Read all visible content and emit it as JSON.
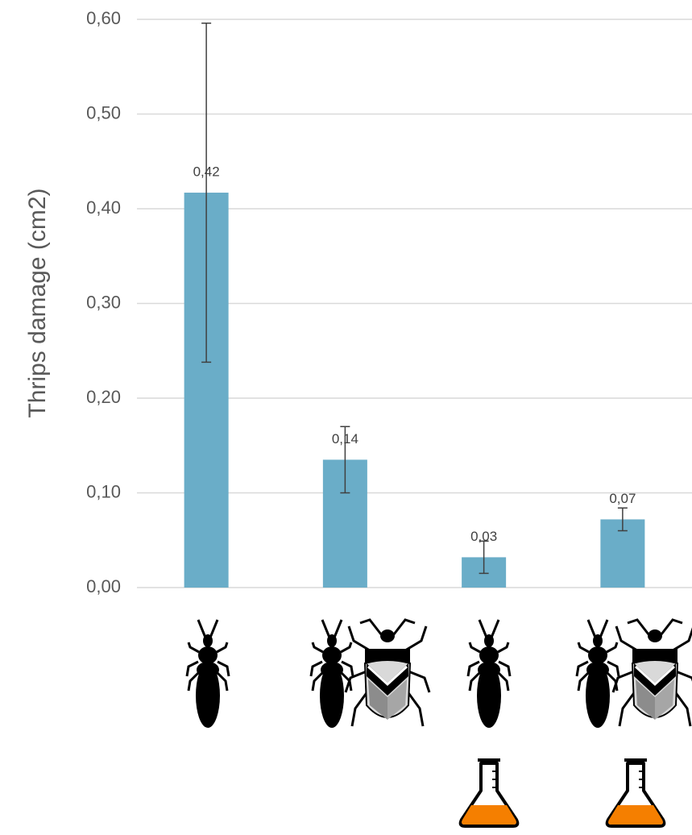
{
  "chart_data": {
    "type": "bar",
    "y_label": "Thrips damage (cm2)",
    "categories": [
      null,
      null,
      null,
      null
    ],
    "values": [
      0.417,
      0.135,
      0.032,
      0.072
    ],
    "value_labels": [
      "0,42",
      "0,14",
      "0,03",
      "0,07"
    ],
    "errors": [
      0.179,
      0.035,
      0.017,
      0.012
    ],
    "color": "#6aadc8",
    "ylim": [
      0,
      0.6
    ],
    "yticks": [
      {
        "value": 0,
        "label": "0,00"
      },
      {
        "value": 0.1,
        "label": "0,10"
      },
      {
        "value": 0.2,
        "label": "0,20"
      },
      {
        "value": 0.3,
        "label": "0,30"
      },
      {
        "value": 0.4,
        "label": "0,40"
      },
      {
        "value": 0.5,
        "label": "0,50"
      },
      {
        "value": 0.6,
        "label": "0,60"
      }
    ],
    "grid": true
  }
}
